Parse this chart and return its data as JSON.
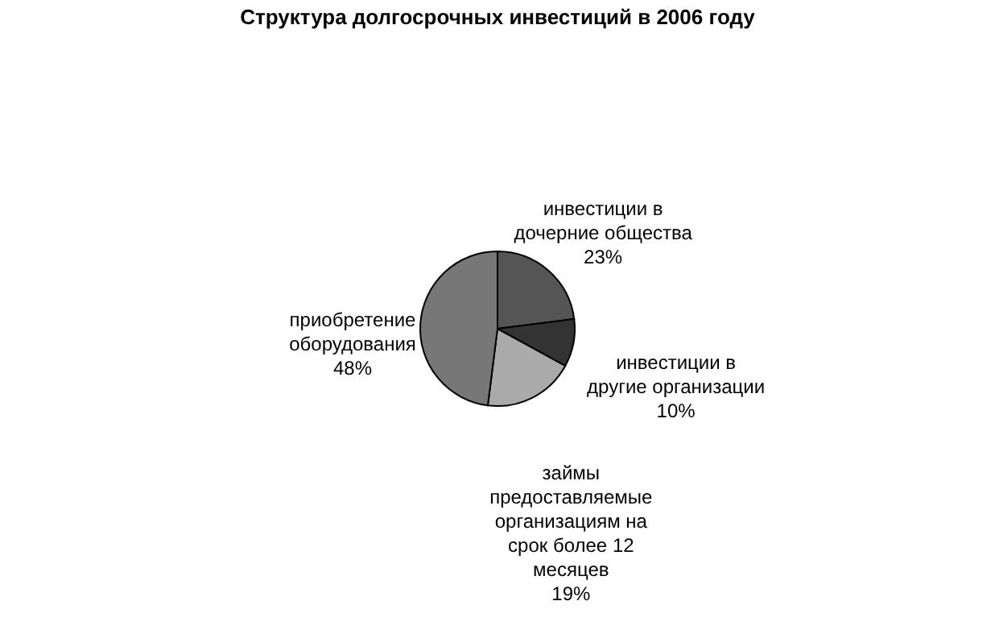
{
  "chart_data": {
    "type": "pie",
    "title": "Структура долгосрочных инвестиций в 2006 году",
    "categories": [
      "инвестиции в дочерние общества",
      "инвестиции в другие организации",
      "займы предоставляемые организациям на срок более 12 месяцев",
      "приобретение оборудования"
    ],
    "values": [
      23,
      10,
      19,
      48
    ],
    "value_labels": [
      "23%",
      "10%",
      "19%",
      "48%"
    ],
    "colors": [
      "#555555",
      "#333333",
      "#aaaaaa",
      "#777777"
    ],
    "legend": false
  }
}
